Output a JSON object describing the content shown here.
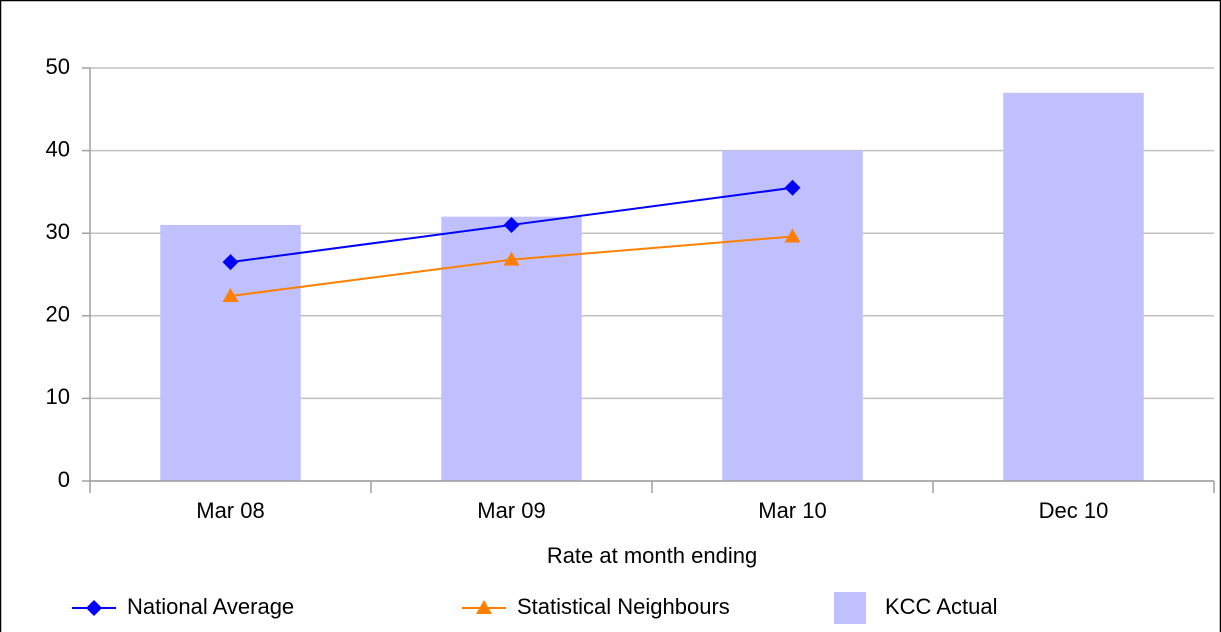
{
  "chart_data": {
    "type": "bar",
    "x_label": "Rate at month ending",
    "categories": [
      "Mar 08",
      "Mar 09",
      "Mar 10",
      "Dec 10"
    ],
    "series": [
      {
        "name": "National Average",
        "type": "line",
        "marker": "diamond",
        "color": "#0000ff",
        "values": [
          26.5,
          31,
          35.5,
          null
        ]
      },
      {
        "name": "Statistical Neighbours",
        "type": "line",
        "marker": "triangle",
        "color": "#ff8000",
        "values": [
          22.4,
          26.8,
          29.6,
          null
        ]
      },
      {
        "name": "KCC Actual",
        "type": "bar",
        "color": "#c0c0ff",
        "values": [
          31,
          32,
          40,
          47
        ]
      }
    ],
    "ylim": [
      0,
      50
    ],
    "yticks": [
      0,
      10,
      20,
      30,
      40,
      50
    ],
    "grid": true,
    "legend": "bottom"
  }
}
